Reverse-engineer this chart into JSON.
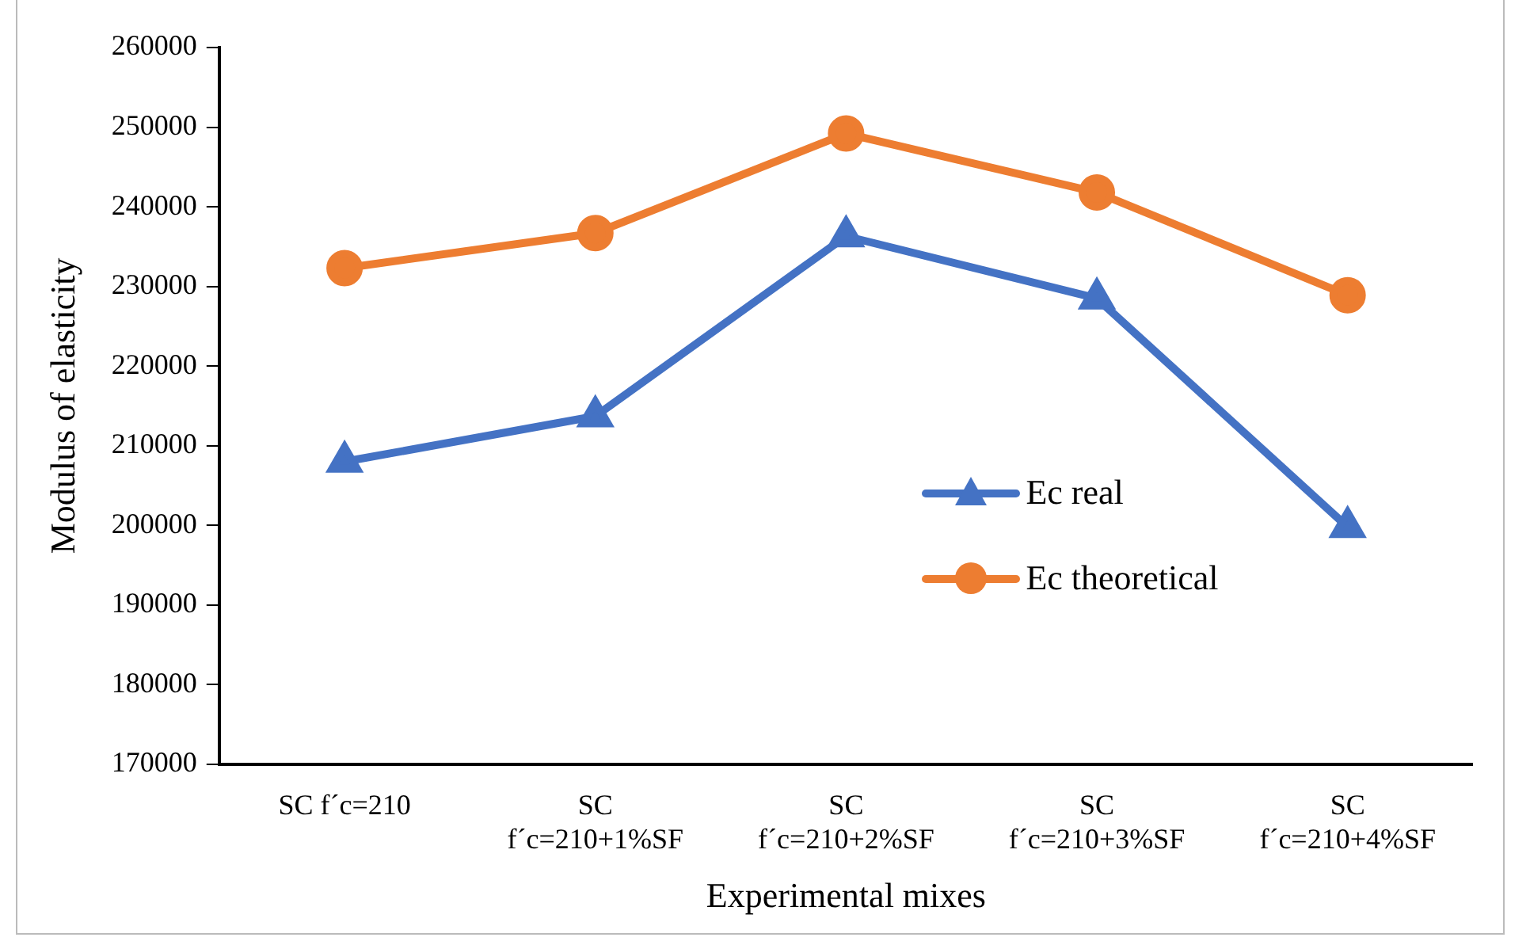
{
  "chart_data": {
    "type": "line",
    "xlabel": "Experimental mixes",
    "ylabel": "Modulus of elasticity",
    "categories": [
      "SC f´c=210",
      "SC\nf´c=210+1%SF",
      "SC\nf´c=210+2%SF",
      "SC\nf´c=210+3%SF",
      "SC\nf´c=210+4%SF"
    ],
    "series": [
      {
        "name": "Ec real",
        "color": "#4472c4",
        "marker": "triangle",
        "values": [
          208000,
          213700,
          236300,
          228500,
          199800
        ]
      },
      {
        "name": "Ec theoretical",
        "color": "#ed7d31",
        "marker": "circle",
        "values": [
          232300,
          236700,
          249200,
          241800,
          228900
        ]
      }
    ],
    "ylim": [
      170000,
      260000
    ],
    "yticks": [
      170000,
      180000,
      190000,
      200000,
      210000,
      220000,
      230000,
      240000,
      250000,
      260000
    ],
    "grid": false,
    "legend": "right",
    "line_style": "solid"
  }
}
